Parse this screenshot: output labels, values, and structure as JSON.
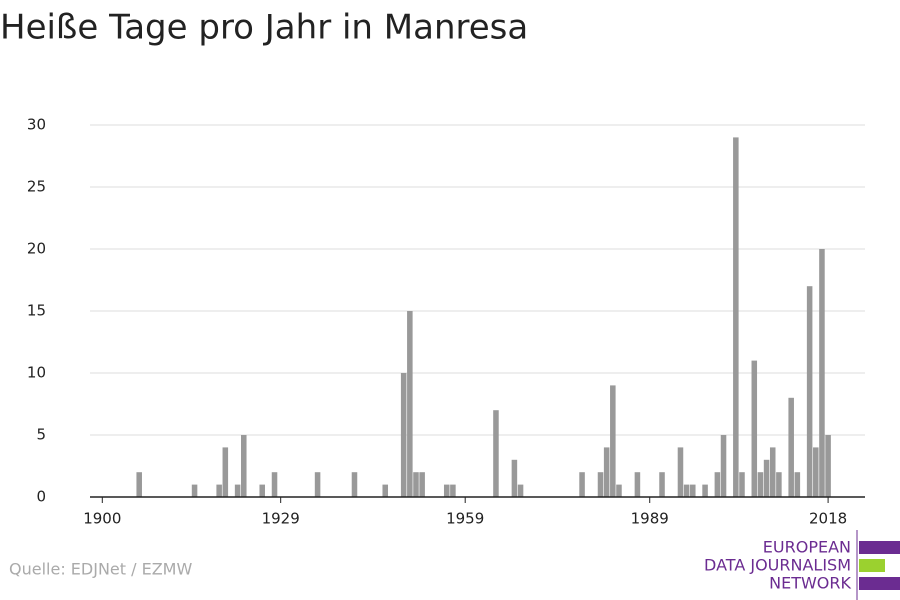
{
  "chart_data": {
    "type": "bar",
    "title": "Heiße Tage pro Jahr in Manresa",
    "x": [
      1906,
      1915,
      1919,
      1920,
      1922,
      1923,
      1926,
      1928,
      1935,
      1941,
      1946,
      1949,
      1950,
      1951,
      1952,
      1956,
      1957,
      1964,
      1967,
      1968,
      1978,
      1981,
      1982,
      1983,
      1984,
      1987,
      1991,
      1994,
      1995,
      1996,
      1998,
      2000,
      2001,
      2003,
      2004,
      2006,
      2007,
      2008,
      2009,
      2010,
      2012,
      2013,
      2015,
      2016,
      2017,
      2018
    ],
    "values": [
      2,
      1,
      1,
      4,
      1,
      5,
      1,
      2,
      2,
      2,
      1,
      10,
      15,
      2,
      2,
      1,
      1,
      7,
      3,
      1,
      2,
      2,
      4,
      9,
      1,
      2,
      2,
      4,
      1,
      1,
      1,
      2,
      5,
      29,
      2,
      11,
      2,
      3,
      4,
      2,
      8,
      2,
      17,
      4,
      20,
      5
    ],
    "color": "#999999",
    "xlim": [
      1898,
      2024
    ],
    "xticks": [
      1900,
      1929,
      1959,
      1989,
      2018
    ],
    "ylim": [
      0,
      30
    ],
    "yticks": [
      0,
      5,
      10,
      15,
      20,
      25,
      30
    ],
    "grid": true,
    "source": "Quelle: EDJNet / EZMW",
    "logo": [
      "EUROPEAN",
      "DATA JOURNALISM",
      "NETWORK"
    ]
  }
}
